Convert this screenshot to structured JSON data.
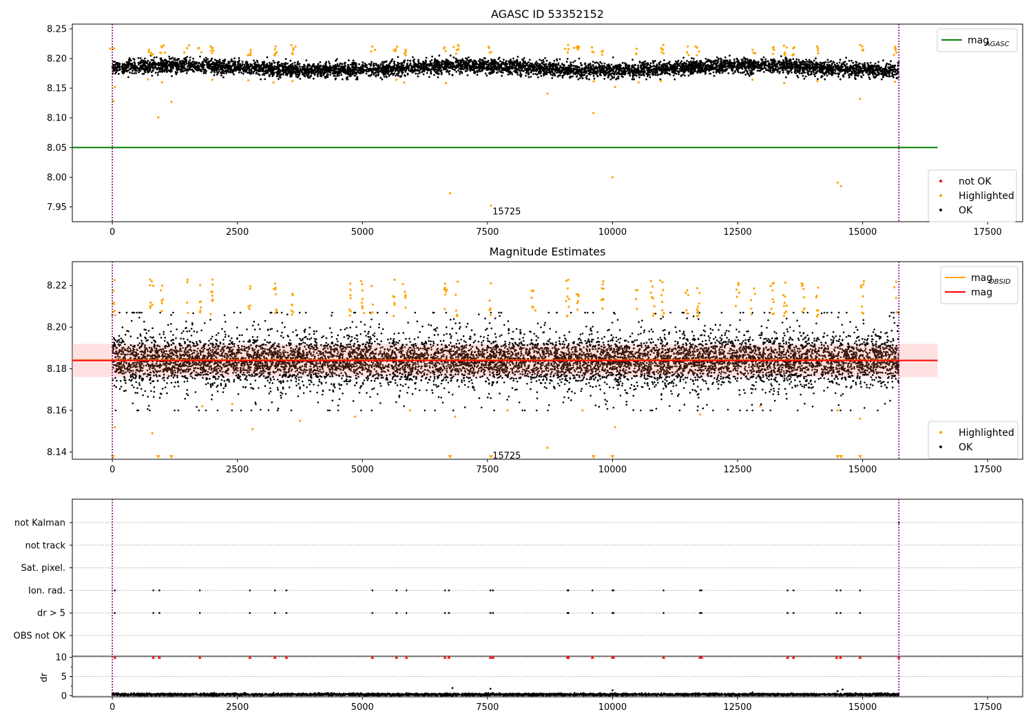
{
  "chart_data": [
    {
      "type": "scatter",
      "title": "AGASC ID 53352152",
      "xlim": [
        -800,
        18200
      ],
      "ylim": [
        7.925,
        8.258
      ],
      "x_ticks": [
        "0",
        "2500",
        "5000",
        "7500",
        "10000",
        "12500",
        "15000",
        "17500"
      ],
      "y_ticks": [
        "7.95",
        "8.00",
        "8.05",
        "8.10",
        "8.15",
        "8.20",
        "8.25"
      ],
      "lines": [
        {
          "name": "mag",
          "sub": "AGASC",
          "y": 8.05,
          "x_range": [
            -800,
            16500
          ],
          "color": "#008000"
        }
      ],
      "vlines": [
        0,
        15725
      ],
      "annotation": {
        "text": "15725",
        "x": 7600,
        "y": 7.943
      },
      "ok_band": {
        "center": 8.184,
        "spread": 0.011,
        "n_points": 6000
      },
      "highlighted_points": [
        [
          20,
          8.128
        ],
        [
          50,
          8.152
        ],
        [
          920,
          8.101
        ],
        [
          1180,
          8.127
        ],
        [
          6750,
          7.973
        ],
        [
          7570,
          7.952
        ],
        [
          8700,
          8.141
        ],
        [
          9620,
          8.108
        ],
        [
          10000,
          8.0
        ],
        [
          10050,
          8.152
        ],
        [
          14500,
          7.991
        ],
        [
          14570,
          7.985
        ],
        [
          14950,
          8.132
        ]
      ],
      "highlighted_clusters": [
        5,
        780,
        1000,
        1500,
        1750,
        2000,
        2750,
        3250,
        3600,
        5200,
        5650,
        5850,
        6650,
        6900,
        7550,
        9100,
        9300,
        9600,
        9800,
        10500,
        11000,
        11500,
        11700,
        12800,
        13200,
        13450,
        13600,
        14100,
        15000,
        15660
      ],
      "legends": [
        {
          "position": "top-right",
          "items": [
            {
              "label": "mag",
              "sub": "AGASC",
              "kind": "line",
              "color": "#008000"
            }
          ]
        },
        {
          "position": "lower-right",
          "items": [
            {
              "label": "not OK",
              "kind": "dot",
              "color": "#ff0000"
            },
            {
              "label": "Highlighted",
              "kind": "dot",
              "color": "#ffa500"
            },
            {
              "label": "OK",
              "kind": "dot",
              "color": "#000000"
            }
          ]
        }
      ]
    },
    {
      "type": "scatter",
      "title": "Magnitude Estimates",
      "xlim": [
        -800,
        18200
      ],
      "ylim": [
        8.1365,
        8.2315
      ],
      "x_ticks": [
        "0",
        "2500",
        "5000",
        "7500",
        "10000",
        "12500",
        "15000",
        "17500"
      ],
      "y_ticks": [
        "8.14",
        "8.16",
        "8.18",
        "8.20",
        "8.22"
      ],
      "lines": [
        {
          "name": "mag",
          "sub": "OBSID",
          "y": 8.1842,
          "x_range": [
            -800,
            15725
          ],
          "color": "#ffa500"
        },
        {
          "name": "mag",
          "y": 8.184,
          "x_range": [
            -800,
            16500
          ],
          "color": "#ff0000"
        }
      ],
      "band": {
        "y": [
          8.176,
          8.192
        ],
        "x_range": [
          -800,
          16500
        ],
        "color": "#ffaaaa"
      },
      "vlines": [
        0,
        15725
      ],
      "annotation": {
        "text": "15725",
        "x": 7600,
        "y": 8.1385
      },
      "ok_band": {
        "center": 8.184,
        "spread": 0.0055,
        "n_points": 9000
      },
      "highlighted_points": [
        [
          50,
          8.152
        ],
        [
          800,
          8.149
        ],
        [
          1800,
          8.162
        ],
        [
          2400,
          8.163
        ],
        [
          2800,
          8.151
        ],
        [
          3750,
          8.155
        ],
        [
          4850,
          8.157
        ],
        [
          5950,
          8.16
        ],
        [
          6850,
          8.157
        ],
        [
          7900,
          8.16
        ],
        [
          8700,
          8.142
        ],
        [
          9400,
          8.16
        ],
        [
          10050,
          8.152
        ],
        [
          11750,
          8.158
        ],
        [
          12950,
          8.162
        ],
        [
          14500,
          8.16
        ],
        [
          14950,
          8.156
        ]
      ],
      "clipped_markers": [
        10,
        920,
        1180,
        6750,
        7570,
        9620,
        10000,
        14500,
        14570,
        14950
      ],
      "highlighted_clusters": [
        30,
        780,
        1000,
        1500,
        1750,
        2000,
        2750,
        3250,
        3600,
        4750,
        5000,
        5200,
        5650,
        5850,
        6650,
        6900,
        7550,
        8400,
        9100,
        9300,
        9800,
        10500,
        10800,
        11000,
        11500,
        11700,
        12500,
        12800,
        13200,
        13450,
        13800,
        14100,
        15000,
        15660
      ],
      "legends": [
        {
          "position": "top-right",
          "items": [
            {
              "label": "mag",
              "sub": "OBSID",
              "kind": "line",
              "color": "#ffa500"
            },
            {
              "label": "mag",
              "kind": "line",
              "color": "#ff0000"
            }
          ]
        },
        {
          "position": "lower-right",
          "items": [
            {
              "label": "Highlighted",
              "kind": "dot",
              "color": "#ffa500"
            },
            {
              "label": "OK",
              "kind": "dot",
              "color": "#000000"
            }
          ]
        }
      ]
    },
    {
      "type": "scatter",
      "title": "",
      "xlim": [
        -800,
        18200
      ],
      "categories": [
        "not Kalman",
        "not track",
        "Sat. pixel.",
        "Ion. rad.",
        "dr > 5",
        "OBS not OK"
      ],
      "flag_x": [
        50,
        820,
        940,
        1750,
        2750,
        3250,
        3480,
        5200,
        5680,
        5880,
        6650,
        6730,
        7560,
        7610,
        9100,
        9120,
        9600,
        10000,
        10020,
        11020,
        11750,
        11780,
        13500,
        13620,
        14480,
        14560,
        14950
      ],
      "vlines": [
        0,
        15725
      ]
    },
    {
      "type": "scatter",
      "title": "",
      "ylabel": "dr",
      "xlim": [
        -800,
        18200
      ],
      "ylim": [
        -0.3,
        10.3
      ],
      "x_ticks": [
        "0",
        "2500",
        "5000",
        "7500",
        "10000",
        "12500",
        "15000",
        "17500"
      ],
      "y_ticks": [
        "0",
        "5",
        "10"
      ],
      "dr_points": {
        "center": 0.3,
        "spread": 0.15,
        "n_points": 5000
      },
      "dr_outliers": [
        [
          6800,
          2.0
        ],
        [
          7560,
          1.8
        ],
        [
          10000,
          1.4
        ],
        [
          14500,
          1.2
        ],
        [
          14600,
          1.6
        ]
      ],
      "clipped_x": [
        50,
        820,
        940,
        1750,
        2750,
        3250,
        3480,
        5200,
        5680,
        5880,
        6650,
        6730,
        7560,
        7610,
        9100,
        9120,
        9600,
        10000,
        10020,
        11020,
        11750,
        11780,
        13500,
        13620,
        14480,
        14560,
        14950,
        15725
      ],
      "vlines": [
        0,
        15725
      ]
    }
  ]
}
